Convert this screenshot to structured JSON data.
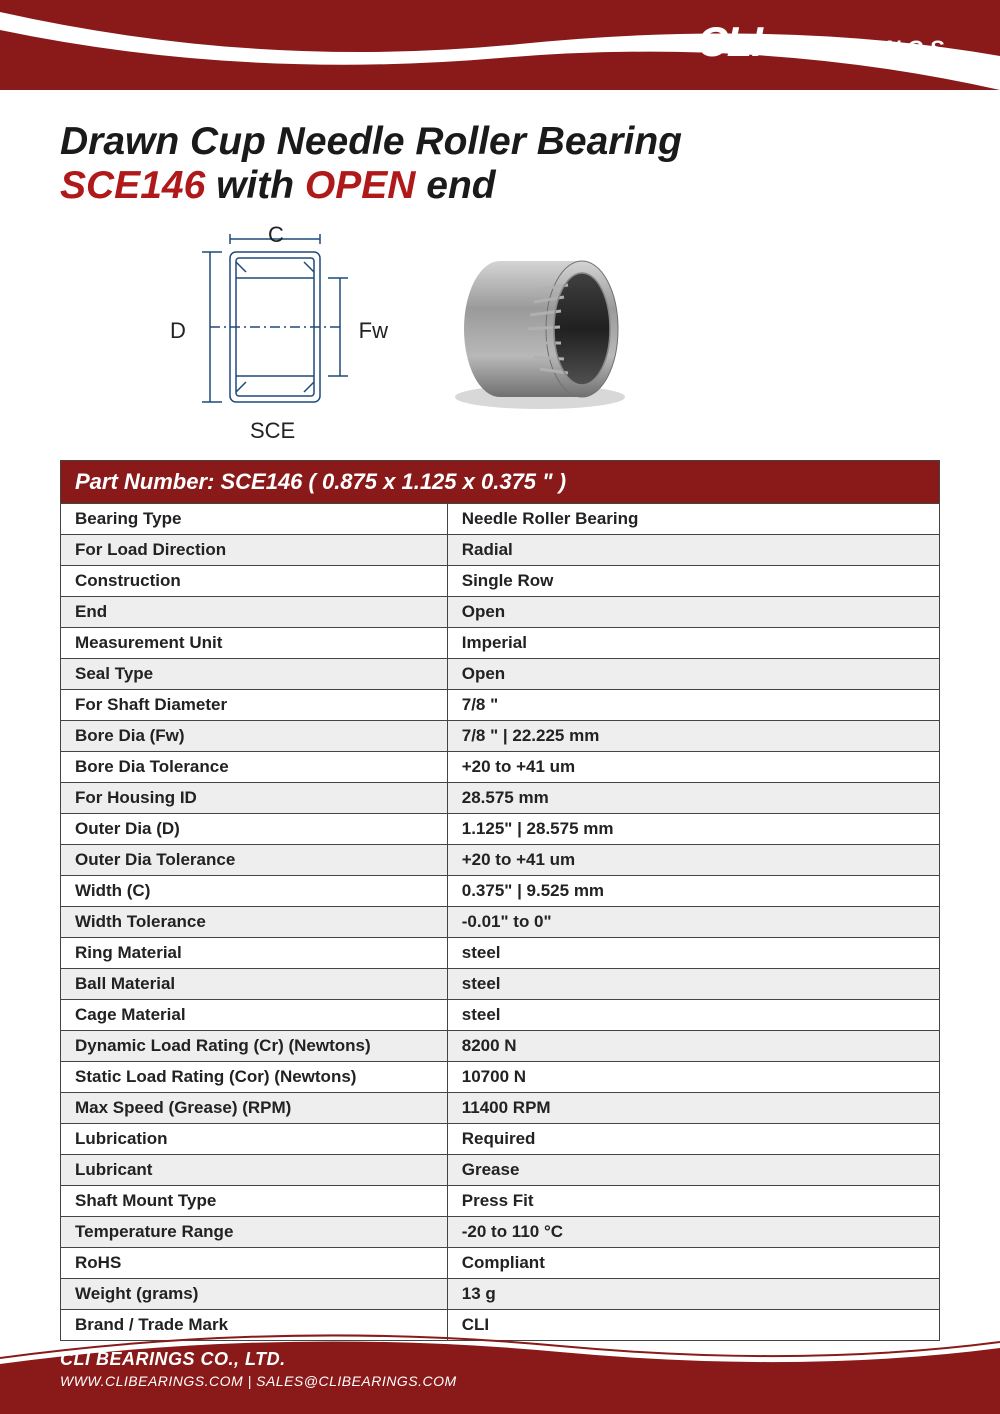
{
  "brand": {
    "logo_text": "CLI",
    "registered": "®",
    "suffix": "BEARINGS",
    "color": "#ffffff"
  },
  "header": {
    "bg_color": "#8a1a1a",
    "curve_color": "#ffffff"
  },
  "title": {
    "line1": "Drawn Cup Needle Roller Bearing",
    "part": "SCE146",
    "with": " with ",
    "open": "OPEN",
    "end_suffix": " end",
    "main_color": "#1a1a1a",
    "accent_color": "#b01919",
    "fontsize": 39
  },
  "diagram": {
    "label_c": "C",
    "label_d": "D",
    "label_fw": "Fw",
    "label_type": "SCE",
    "stroke": "#1e4a7a",
    "stroke_width": 1.5
  },
  "photo": {
    "ring_outer": "#8a8a8a",
    "ring_highlight": "#c8c8c8",
    "ring_dark": "#3b3b3b",
    "shadow": "#cccccc"
  },
  "table": {
    "header_text": "Part Number: SCE146  ( 0.875 x 1.125 x 0.375 \" )",
    "header_bg": "#8a1a1a",
    "header_color": "#ffffff",
    "row_bg": "#ffffff",
    "alt_row_bg": "#eeeeee",
    "border_color": "#444444",
    "label_fontsize": 17,
    "rows": [
      {
        "label": "Bearing Type",
        "value": "Needle Roller Bearing"
      },
      {
        "label": "For Load Direction",
        "value": "Radial"
      },
      {
        "label": "Construction",
        "value": "Single Row"
      },
      {
        "label": "End",
        "value": "Open"
      },
      {
        "label": "Measurement Unit",
        "value": "Imperial"
      },
      {
        "label": "Seal Type",
        "value": "Open"
      },
      {
        "label": "For Shaft Diameter",
        "value": "7/8 \""
      },
      {
        "label": "Bore Dia (Fw)",
        "value": "7/8 \"  |  22.225 mm"
      },
      {
        "label": "Bore Dia Tolerance",
        "value": "+20 to +41 um"
      },
      {
        "label": "For Housing ID",
        "value": "28.575 mm"
      },
      {
        "label": "Outer Dia (D)",
        "value": "1.125\"  |  28.575 mm"
      },
      {
        "label": "Outer Dia Tolerance",
        "value": "+20 to +41 um"
      },
      {
        "label": "Width (C)",
        "value": "0.375\"  |  9.525 mm"
      },
      {
        "label": "Width Tolerance",
        "value": "-0.01\" to 0\""
      },
      {
        "label": "Ring Material",
        "value": "steel"
      },
      {
        "label": "Ball Material",
        "value": "steel"
      },
      {
        "label": "Cage Material",
        "value": "steel"
      },
      {
        "label": "Dynamic Load Rating (Cr) (Newtons)",
        "value": "8200 N"
      },
      {
        "label": "Static Load Rating (Cor) (Newtons)",
        "value": "10700 N"
      },
      {
        "label": "Max Speed (Grease) (RPM)",
        "value": "11400 RPM"
      },
      {
        "label": "Lubrication",
        "value": "Required"
      },
      {
        "label": "Lubricant",
        "value": "Grease"
      },
      {
        "label": "Shaft Mount Type",
        "value": "Press Fit"
      },
      {
        "label": "Temperature Range",
        "value": "-20 to 110 °C"
      },
      {
        "label": "RoHS",
        "value": "Compliant"
      },
      {
        "label": "Weight (grams)",
        "value": "13 g"
      },
      {
        "label": "Brand / Trade Mark",
        "value": "CLI"
      }
    ]
  },
  "footer": {
    "bg_color": "#8a1a1a",
    "company": "CLI BEARINGS CO., LTD.",
    "contact": "WWW.CLIBEARINGS.COM   |   SALES@CLIBEARINGS.COM"
  }
}
